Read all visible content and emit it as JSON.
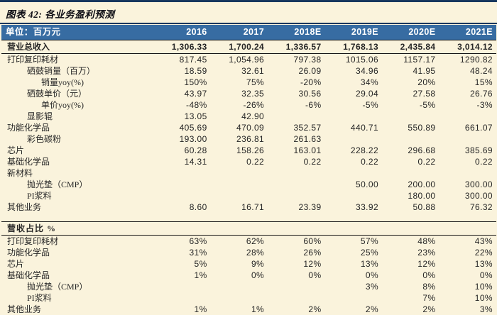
{
  "title": "图表 42: 各业务盈利预测",
  "colors": {
    "background": "#FAF3DC",
    "accent_navy": "#17375E",
    "header_blue": "#376CA2",
    "rule": "#141414",
    "header_text": "#FFFFFF",
    "body_text": "#262626"
  },
  "table": {
    "unit_label": "单位：百万元",
    "years": [
      "2016",
      "2017",
      "2018E",
      "2019E",
      "2020E",
      "2021E"
    ],
    "sections": [
      {
        "name": "revenue-values",
        "rows": [
          {
            "label": "营业总收入",
            "indent": 0,
            "bold": true,
            "values": [
              "1,306.33",
              "1,700.24",
              "1,336.57",
              "1,768.13",
              "2,435.84",
              "3,014.12"
            ]
          },
          {
            "label": "打印复印耗材",
            "indent": 0,
            "values": [
              "817.45",
              "1,054.96",
              "797.38",
              "1015.06",
              "1157.17",
              "1290.82"
            ]
          },
          {
            "label": "硒鼓销量（百万）",
            "indent": 1,
            "values": [
              "18.59",
              "32.61",
              "26.09",
              "34.96",
              "41.95",
              "48.24"
            ]
          },
          {
            "label": "销量yoy(%)",
            "indent": 2,
            "values": [
              "150%",
              "75%",
              "-20%",
              "34%",
              "20%",
              "15%"
            ]
          },
          {
            "label": "硒鼓单价（元）",
            "indent": 1,
            "values": [
              "43.97",
              "32.35",
              "30.56",
              "29.04",
              "27.58",
              "26.76"
            ]
          },
          {
            "label": "单价yoy(%)",
            "indent": 2,
            "values": [
              "-48%",
              "-26%",
              "-6%",
              "-5%",
              "-5%",
              "-3%"
            ]
          },
          {
            "label": "显影辊",
            "indent": 1,
            "values": [
              "13.05",
              "42.90",
              "",
              "",
              "",
              ""
            ]
          },
          {
            "label": "功能化学品",
            "indent": 0,
            "values": [
              "405.69",
              "470.09",
              "352.57",
              "440.71",
              "550.89",
              "661.07"
            ]
          },
          {
            "label": "彩色碳粉",
            "indent": 1,
            "values": [
              "193.00",
              "236.81",
              "261.63",
              "",
              "",
              ""
            ]
          },
          {
            "label": "芯片",
            "indent": 0,
            "values": [
              "60.28",
              "158.26",
              "163.01",
              "228.22",
              "296.68",
              "385.69"
            ]
          },
          {
            "label": "基础化学品",
            "indent": 0,
            "values": [
              "14.31",
              "0.22",
              "0.22",
              "0.22",
              "0.22",
              "0.22"
            ]
          },
          {
            "label": "新材料",
            "indent": 0,
            "values": [
              "",
              "",
              "",
              "",
              "",
              ""
            ]
          },
          {
            "label": "抛光垫（CMP）",
            "indent": 1,
            "values": [
              "",
              "",
              "",
              "50.00",
              "200.00",
              "300.00"
            ]
          },
          {
            "label": "PI浆料",
            "indent": 1,
            "values": [
              "",
              "",
              "",
              "",
              "180.00",
              "300.00"
            ]
          },
          {
            "label": "其他业务",
            "indent": 0,
            "values": [
              "8.60",
              "16.71",
              "23.39",
              "33.92",
              "50.88",
              "76.32"
            ]
          }
        ]
      },
      {
        "name": "revenue-share",
        "header": "营收占比 %",
        "rows": [
          {
            "label": "打印复印耗材",
            "indent": 0,
            "values": [
              "63%",
              "62%",
              "60%",
              "57%",
              "48%",
              "43%"
            ]
          },
          {
            "label": "功能化学品",
            "indent": 0,
            "values": [
              "31%",
              "28%",
              "26%",
              "25%",
              "23%",
              "22%"
            ]
          },
          {
            "label": "芯片",
            "indent": 0,
            "values": [
              "5%",
              "9%",
              "12%",
              "13%",
              "12%",
              "13%"
            ]
          },
          {
            "label": "基础化学品",
            "indent": 0,
            "values": [
              "1%",
              "0%",
              "0%",
              "0%",
              "0%",
              "0%"
            ]
          },
          {
            "label": "抛光垫（CMP）",
            "indent": 1,
            "values": [
              "",
              "",
              "",
              "3%",
              "8%",
              "10%"
            ]
          },
          {
            "label": "PI浆料",
            "indent": 1,
            "values": [
              "",
              "",
              "",
              "",
              "7%",
              "10%"
            ]
          },
          {
            "label": "其他业务",
            "indent": 0,
            "values": [
              "1%",
              "1%",
              "2%",
              "2%",
              "2%",
              "3%"
            ]
          }
        ]
      }
    ]
  }
}
